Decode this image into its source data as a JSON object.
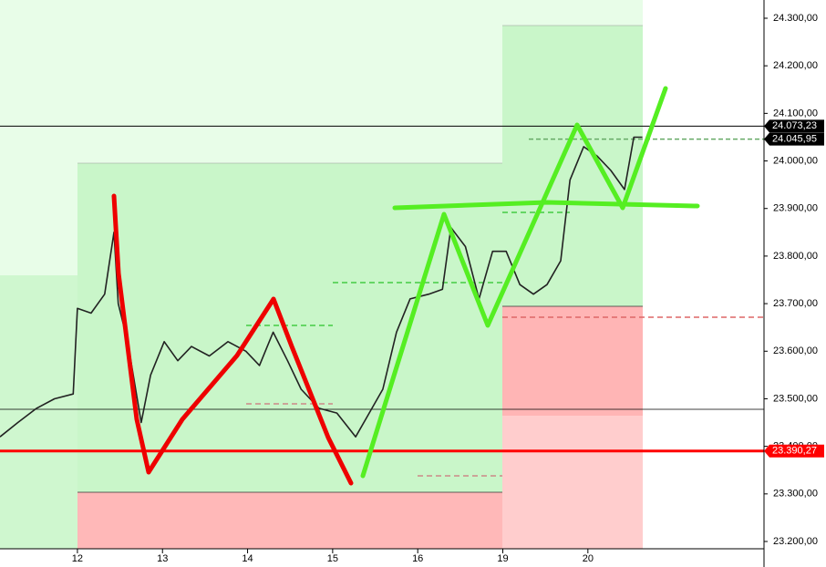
{
  "chart_data": {
    "type": "line",
    "xlim": [
      -0.91,
      8.07
    ],
    "xticks": [
      {
        "value": 0,
        "label": "12"
      },
      {
        "value": 1,
        "label": "13"
      },
      {
        "value": 2,
        "label": "14"
      },
      {
        "value": 3,
        "label": "15"
      },
      {
        "value": 4,
        "label": "16"
      },
      {
        "value": 5,
        "label": "19"
      },
      {
        "value": 6,
        "label": "20"
      }
    ],
    "ylim": [
      23200,
      24300
    ],
    "yticks": [
      {
        "value": 23200,
        "label": "23.200,00"
      },
      {
        "value": 23300,
        "label": "23.300,00"
      },
      {
        "value": 23400,
        "label": "23.400,00"
      },
      {
        "value": 23500,
        "label": "23.500,00"
      },
      {
        "value": 23600,
        "label": "23.600,00"
      },
      {
        "value": 23700,
        "label": "23.700,00"
      },
      {
        "value": 23800,
        "label": "23.800,00"
      },
      {
        "value": 23900,
        "label": "23.900,00"
      },
      {
        "value": 24000,
        "label": "24.000,00"
      },
      {
        "value": 24100,
        "label": "24.100,00"
      },
      {
        "value": 24200,
        "label": "24.200,00"
      },
      {
        "value": 24300,
        "label": "24.300,00"
      }
    ],
    "price_labels": [
      {
        "value": 24073.23,
        "label": "24.073,23",
        "color": "#000000"
      },
      {
        "value": 24045.95,
        "label": "24.045,95",
        "color": "#000000"
      },
      {
        "value": 23390.27,
        "label": "23.390,27",
        "color": "#ff0000"
      }
    ],
    "series": [
      {
        "color": "#222222",
        "x": [
          -0.91,
          -0.7,
          -0.48,
          -0.27,
          -0.05,
          0,
          0.16,
          0.32,
          0.43,
          0.48,
          0.59,
          0.75,
          0.86,
          1.02,
          1.18,
          1.34,
          1.55,
          1.77,
          1.98,
          2.14,
          2.3,
          2.47,
          2.63,
          2.84,
          3.05,
          3.27,
          3.43,
          3.59,
          3.75,
          3.91,
          4.13,
          4.29,
          4.39,
          4.56,
          4.72,
          4.88,
          5.04,
          5.2,
          5.36,
          5.52,
          5.68,
          5.79,
          5.95,
          6.11,
          6.27,
          6.43,
          6.54,
          6.64
        ],
        "values": [
          23420,
          23450,
          23480,
          23500,
          23510,
          23690,
          23680,
          23720,
          23850,
          23700,
          23620,
          23450,
          23550,
          23620,
          23580,
          23610,
          23590,
          23620,
          23600,
          23570,
          23640,
          23580,
          23520,
          23480,
          23470,
          23420,
          23470,
          23520,
          23640,
          23710,
          23720,
          23730,
          23860,
          23820,
          23710,
          23810,
          23810,
          23740,
          23720,
          23740,
          23790,
          23960,
          24030,
          24010,
          23980,
          23940,
          24050,
          24050
        ]
      }
    ]
  }
}
